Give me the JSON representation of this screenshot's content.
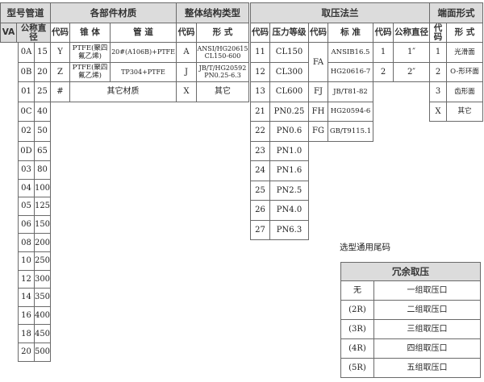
{
  "header": {
    "groups": [
      "型号管道",
      "各部件材质",
      "整体结构类型",
      "取压法兰",
      "端面形式"
    ],
    "columns": [
      "VA",
      "公称直径",
      "代码",
      "锥 体",
      "管 道",
      "代码",
      "形 式",
      "代码",
      "压力等级",
      "代码",
      "标 准",
      "代码",
      "公称直径",
      "代码",
      "形 式"
    ]
  },
  "pipe_rows": [
    {
      "code": "0A",
      "dn": "15"
    },
    {
      "code": "0B",
      "dn": "20"
    },
    {
      "code": "01",
      "dn": "25"
    },
    {
      "code": "0C",
      "dn": "40"
    },
    {
      "code": "02",
      "dn": "50"
    },
    {
      "code": "0D",
      "dn": "65"
    },
    {
      "code": "03",
      "dn": "80"
    },
    {
      "code": "04",
      "dn": "100"
    },
    {
      "code": "05",
      "dn": "125"
    },
    {
      "code": "06",
      "dn": "150"
    },
    {
      "code": "08",
      "dn": "200"
    },
    {
      "code": "10",
      "dn": "250"
    },
    {
      "code": "12",
      "dn": "300"
    },
    {
      "code": "14",
      "dn": "350"
    },
    {
      "code": "16",
      "dn": "400"
    },
    {
      "code": "18",
      "dn": "450"
    },
    {
      "code": "20",
      "dn": "500"
    }
  ],
  "material_rows": [
    {
      "code": "Y",
      "cone": "PTFE(聚四氟乙烯)",
      "pipe": "20#(A106B)+PTFE"
    },
    {
      "code": "Z",
      "cone": "PTFE(聚四氟乙烯)",
      "pipe": "TP304+PTFE"
    },
    {
      "code": "#",
      "merged": "其它材质"
    }
  ],
  "structure_rows": [
    {
      "code": "A",
      "form": "ANSI/HG20615 CL150-600"
    },
    {
      "code": "J",
      "form": "JB/T/HG20592 PN0.25-6.3"
    },
    {
      "code": "X",
      "form": "其它"
    }
  ],
  "pressure_rows": [
    {
      "code": "11",
      "rating": "CL150"
    },
    {
      "code": "12",
      "rating": "CL300"
    },
    {
      "code": "13",
      "rating": "CL600"
    },
    {
      "code": "21",
      "rating": "PN0.25"
    },
    {
      "code": "22",
      "rating": "PN0.6"
    },
    {
      "code": "23",
      "rating": "PN1.0"
    },
    {
      "code": "24",
      "rating": "PN1.6"
    },
    {
      "code": "25",
      "rating": "PN2.5"
    },
    {
      "code": "26",
      "rating": "PN4.0"
    },
    {
      "code": "27",
      "rating": "PN6.3"
    }
  ],
  "standard_codes": [
    "FA",
    "FJ",
    "FH",
    "FG"
  ],
  "standards": [
    "ANSIB16.5",
    "HG20616-7",
    "JB/T81-82",
    "HG20594-6",
    "GB/T9115.1"
  ],
  "size_rows": [
    {
      "code": "1",
      "size": "1″"
    },
    {
      "code": "2",
      "size": "2″"
    }
  ],
  "face_rows": [
    {
      "code": "1",
      "form": "光滑面"
    },
    {
      "code": "2",
      "form": "O-形环面"
    },
    {
      "code": "3",
      "form": "齿形面"
    },
    {
      "code": "X",
      "form": "其它"
    }
  ],
  "suffix": {
    "title": "选型通用尾码",
    "header": "冗余取压",
    "rows": [
      {
        "code": "无",
        "desc": "一组取压口"
      },
      {
        "code": "(2R)",
        "desc": "二组取压口"
      },
      {
        "code": "(3R)",
        "desc": "三组取压口"
      },
      {
        "code": "(4R)",
        "desc": "四组取压口"
      },
      {
        "code": "(5R)",
        "desc": "五组取压口"
      }
    ]
  }
}
